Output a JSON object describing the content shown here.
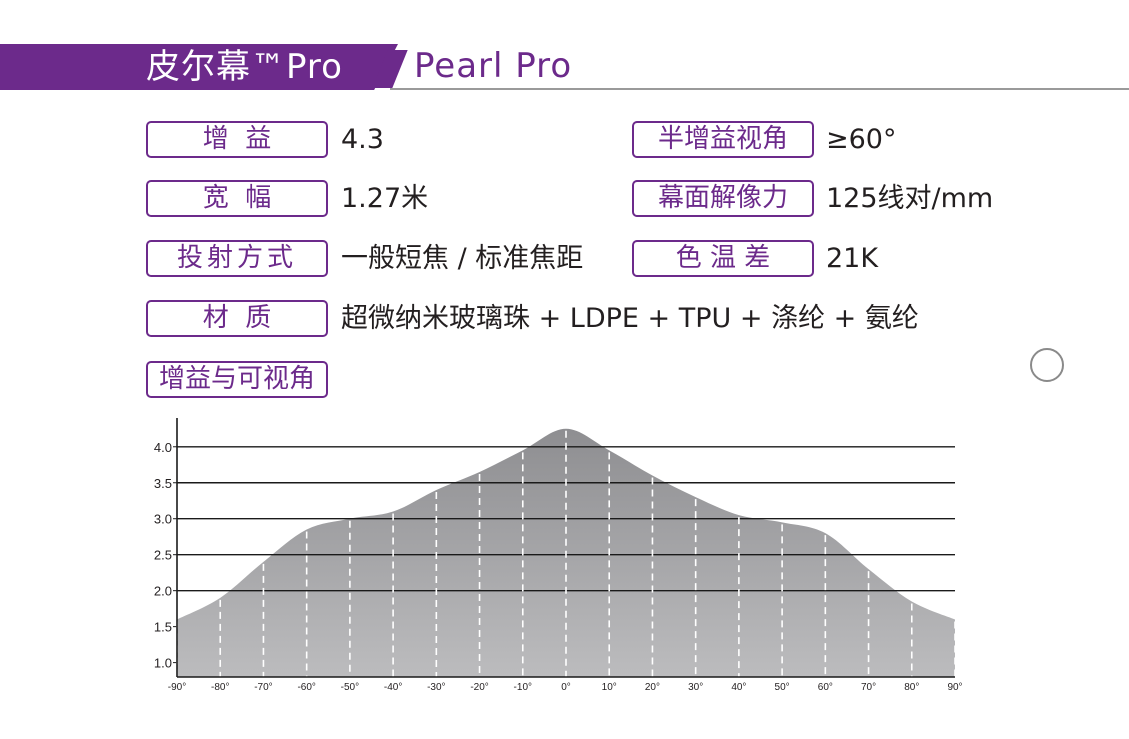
{
  "header": {
    "title_zh": "皮尔幕™Pro",
    "title_en": "Pearl Pro"
  },
  "specs": {
    "gain_label": "增  益",
    "gain_value": "4.3",
    "half_gain_label": "半增益视角",
    "half_gain_value": "≥60°",
    "width_label": "宽  幅",
    "width_value": "1.27米",
    "resolution_label": "幕面解像力",
    "resolution_value": "125线对/mm",
    "projection_label": "投射方式",
    "projection_value": "一般短焦 / 标准焦距",
    "color_temp_label": "色 温 差",
    "color_temp_value": "21K",
    "material_label": "材  质",
    "material_value": "超微纳米玻璃珠 + LDPE + TPU + 涤纶 + 氨纶",
    "chart_section_label": "增益与可视角"
  },
  "colors": {
    "accent": "#6c2a8b",
    "area_top": "#8e8e91",
    "area_bottom": "#bcbcbe"
  },
  "chart_data": {
    "type": "area",
    "title": "增益与可视角",
    "xlabel": "",
    "ylabel": "",
    "x": [
      -90,
      -80,
      -70,
      -60,
      -50,
      -40,
      -30,
      -20,
      -10,
      0,
      10,
      20,
      30,
      40,
      50,
      60,
      70,
      80,
      90
    ],
    "x_tick_labels": [
      "-90°",
      "-80°",
      "-70°",
      "-60°",
      "-50°",
      "-40°",
      "-30°",
      "-20°",
      "-10°",
      "0°",
      "10°",
      "20°",
      "30°",
      "40°",
      "50°",
      "60°",
      "70°",
      "80°",
      "90°"
    ],
    "values": [
      1.6,
      1.9,
      2.4,
      2.85,
      3.0,
      3.1,
      3.4,
      3.65,
      3.95,
      4.25,
      3.95,
      3.6,
      3.3,
      3.05,
      2.95,
      2.8,
      2.3,
      1.85,
      1.6
    ],
    "y_ticks": [
      1.0,
      1.5,
      2.0,
      2.5,
      3.0,
      3.5,
      4.0
    ],
    "y_tick_labels": [
      "1.0",
      "1.5",
      "2.0",
      "2.5",
      "3.0",
      "3.5",
      "4.0"
    ],
    "xlim": [
      -90,
      90
    ],
    "ylim": [
      0.8,
      4.4
    ],
    "grid": true,
    "legend": "none"
  }
}
